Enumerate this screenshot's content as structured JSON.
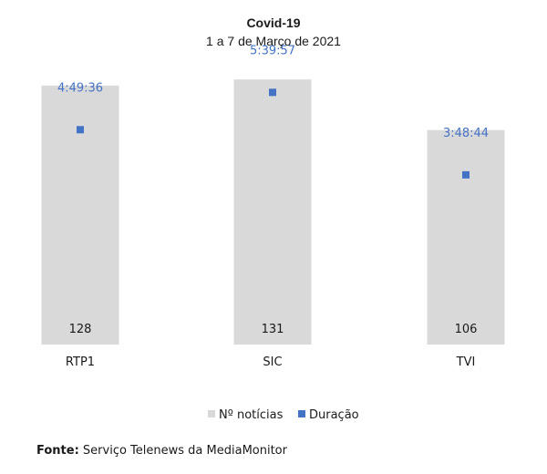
{
  "chart_data": {
    "type": "bar",
    "title": "Covid-19",
    "subtitle": "1 a 7 de Março de 2021",
    "categories": [
      "RTP1",
      "SIC",
      "TVI"
    ],
    "series": [
      {
        "name": "Nº notícias",
        "kind": "bar",
        "values": [
          128,
          131,
          106
        ],
        "color": "#d9d9d9"
      },
      {
        "name": "Duração",
        "kind": "marker",
        "values": [
          "4:49:36",
          "5:39:57",
          "3:48:44"
        ],
        "seconds": [
          17376,
          20397,
          13724
        ],
        "color": "#4472c4"
      }
    ],
    "bar_ylim": [
      0,
      150
    ],
    "duration_ylim_seconds": [
      0,
      21600
    ],
    "grid": false,
    "legend": "bottom",
    "label_color": "#4472c4"
  },
  "footer": {
    "source_label": "Fonte:",
    "source_text": "Serviço Telenews da MediaMonitor"
  }
}
